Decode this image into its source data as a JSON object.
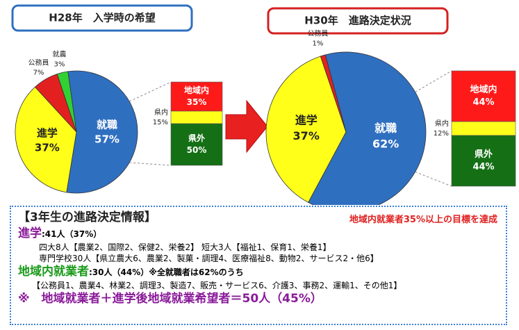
{
  "chart_data": [
    {
      "type": "pie",
      "title": "H28年　入学時の希望",
      "categories": [
        "就職",
        "進学",
        "公務員",
        "就農"
      ],
      "values": [
        57,
        37,
        7,
        3
      ],
      "value_labels": [
        "57%",
        "37%",
        "7%",
        "3%"
      ],
      "colors": [
        "#2f6fc0",
        "#ffff1a",
        "#e22020",
        "#33d033"
      ],
      "bar": {
        "categories": [
          "地域内",
          "県内",
          "県外"
        ],
        "values": [
          35,
          15,
          50
        ],
        "value_labels": [
          "35%",
          "15%",
          "50%"
        ],
        "colors": [
          "#ff1a1a",
          "#ffff1a",
          "#157015"
        ]
      }
    },
    {
      "type": "pie",
      "title": "H30年　進路決定状況",
      "categories": [
        "就職",
        "進学",
        "公務員"
      ],
      "values": [
        62,
        37,
        1
      ],
      "value_labels": [
        "62%",
        "37%",
        "1%"
      ],
      "colors": [
        "#2f6fc0",
        "#ffff1a",
        "#e22020"
      ],
      "bar": {
        "categories": [
          "地域内",
          "県内",
          "県外"
        ],
        "values": [
          44,
          12,
          44
        ],
        "value_labels": [
          "44%",
          "12%",
          "44%"
        ],
        "colors": [
          "#ff1a1a",
          "#ffff1a",
          "#157015"
        ]
      }
    }
  ],
  "info": {
    "heading": "【3年生の進路決定情報】",
    "goal": "地域内就業者35%以上の目標を達成",
    "line1_label": "進学",
    "line1_text": ":41人（37%）",
    "line2": "四大8人【農業2、国際2、保健2、栄養2】 短大3人【福祉1、保育1、栄養1】",
    "line3": "専門学校30人【県立農大6、農業2、製菓・調理4、医療福祉8、動物2、サービス2・他6】",
    "line4_label": "地域内就業者",
    "line4_text": ":30人（44%）※全就職者は62%のうち",
    "line5": "【公務員1、農業4、林業2、調理3、製造7、販売・サービス6、介護3、事務2、運輸1、その他1】",
    "line6": "※　地域就業者＋進学後地域就業希望者＝50人（45%）"
  }
}
